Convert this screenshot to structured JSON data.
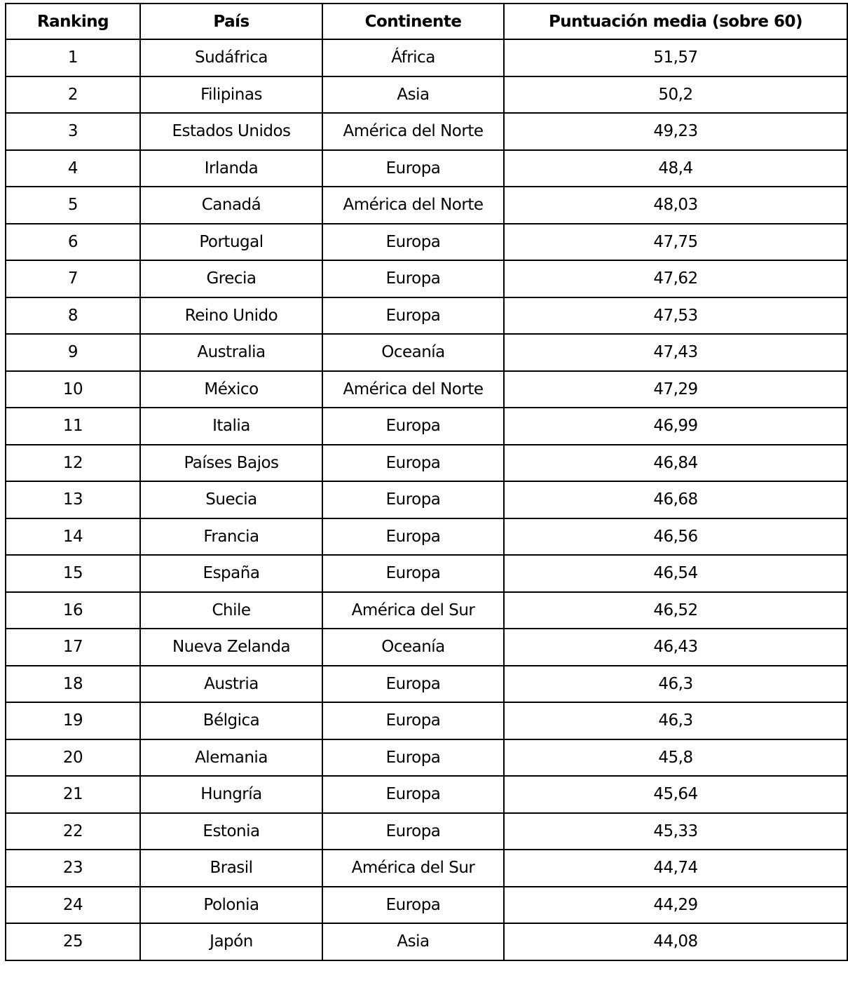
{
  "table": {
    "headers": [
      "Ranking",
      "País",
      "Continente",
      "Puntuación media (sobre 60)"
    ],
    "rows": [
      [
        "1",
        "Sudáfrica",
        "África",
        "51,57"
      ],
      [
        "2",
        "Filipinas",
        "Asia",
        "50,2"
      ],
      [
        "3",
        "Estados Unidos",
        "América del Norte",
        "49,23"
      ],
      [
        "4",
        "Irlanda",
        "Europa",
        "48,4"
      ],
      [
        "5",
        "Canadá",
        "América del Norte",
        "48,03"
      ],
      [
        "6",
        "Portugal",
        "Europa",
        "47,75"
      ],
      [
        "7",
        "Grecia",
        "Europa",
        "47,62"
      ],
      [
        "8",
        "Reino Unido",
        "Europa",
        "47,53"
      ],
      [
        "9",
        "Australia",
        "Oceanía",
        "47,43"
      ],
      [
        "10",
        "México",
        "América del Norte",
        "47,29"
      ],
      [
        "11",
        "Italia",
        "Europa",
        "46,99"
      ],
      [
        "12",
        "Países Bajos",
        "Europa",
        "46,84"
      ],
      [
        "13",
        "Suecia",
        "Europa",
        "46,68"
      ],
      [
        "14",
        "Francia",
        "Europa",
        "46,56"
      ],
      [
        "15",
        "España",
        "Europa",
        "46,54"
      ],
      [
        "16",
        "Chile",
        "América del Sur",
        "46,52"
      ],
      [
        "17",
        "Nueva Zelanda",
        "Oceanía",
        "46,43"
      ],
      [
        "18",
        "Austria",
        "Europa",
        "46,3"
      ],
      [
        "19",
        "Bélgica",
        "Europa",
        "46,3"
      ],
      [
        "20",
        "Alemania",
        "Europa",
        "45,8"
      ],
      [
        "21",
        "Hungría",
        "Europa",
        "45,64"
      ],
      [
        "22",
        "Estonia",
        "Europa",
        "45,33"
      ],
      [
        "23",
        "Brasil",
        "América del Sur",
        "44,74"
      ],
      [
        "24",
        "Polonia",
        "Europa",
        "44,29"
      ],
      [
        "25",
        "Japón",
        "Asia",
        "44,08"
      ]
    ]
  }
}
